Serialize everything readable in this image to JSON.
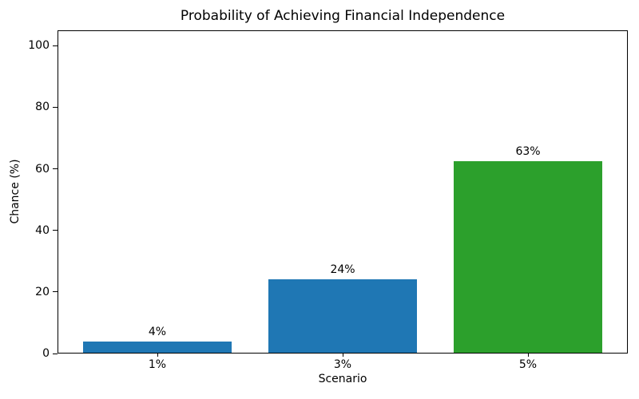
{
  "chart_data": {
    "type": "bar",
    "title": "Probability of Achieving Financial Independence",
    "xlabel": "Scenario",
    "ylabel": "Chance (%)",
    "categories": [
      "1%",
      "3%",
      "5%"
    ],
    "values": [
      3.6,
      23.9,
      62.6
    ],
    "bar_labels": [
      "4%",
      "24%",
      "63%"
    ],
    "bar_colors": [
      "#1f77b4",
      "#1f77b4",
      "#2ca02c"
    ],
    "ylim": [
      0,
      105
    ],
    "yticks": [
      0,
      20,
      40,
      60,
      80,
      100
    ],
    "grid": false,
    "legend": "none",
    "background_color": "#ffffff",
    "frame_color": "#000000"
  }
}
